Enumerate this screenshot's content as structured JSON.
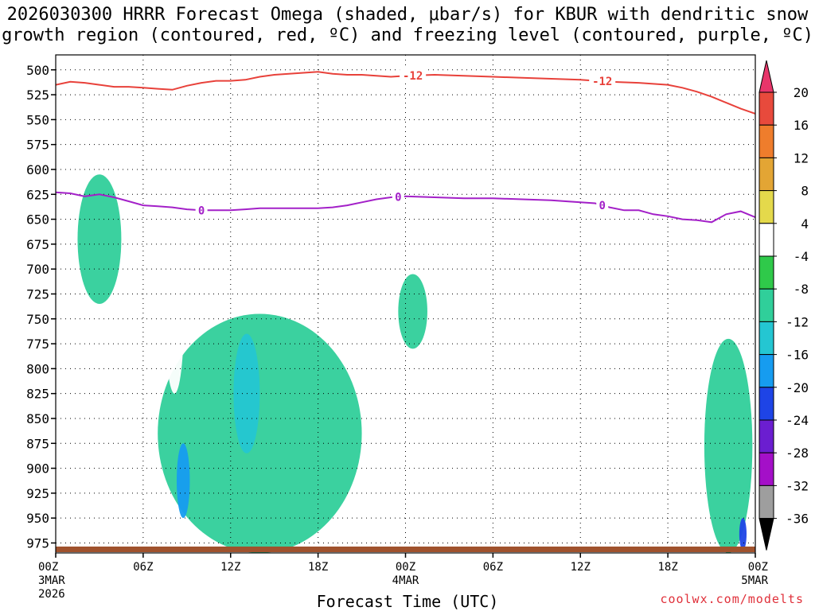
{
  "chart_data": {
    "type": "time-height cross section",
    "title_line1": "2026030300 HRRR Forecast Omega (shaded, μbar/s) for KBUR with dendritic snow",
    "title_line2": "growth region (contoured, red, ºC) and freezing level (contoured, purple, ºC)",
    "xlabel": "Forecast Time (UTC)",
    "credit": "coolwx.com/modelts",
    "x_range_hours": [
      0,
      48
    ],
    "y_range_hpa": [
      485,
      985
    ],
    "y_ticks": [
      "500",
      "525",
      "550",
      "575",
      "600",
      "625",
      "650",
      "675",
      "700",
      "725",
      "750",
      "775",
      "800",
      "825",
      "850",
      "875",
      "900",
      "925",
      "950",
      "975"
    ],
    "x_ticks": [
      {
        "hour": 0,
        "label": "00Z",
        "sub1": "3MAR",
        "sub2": "2026"
      },
      {
        "hour": 6,
        "label": "06Z"
      },
      {
        "hour": 12,
        "label": "12Z"
      },
      {
        "hour": 18,
        "label": "18Z"
      },
      {
        "hour": 24,
        "label": "00Z",
        "sub1": "4MAR"
      },
      {
        "hour": 30,
        "label": "06Z"
      },
      {
        "hour": 36,
        "label": "12Z"
      },
      {
        "hour": 42,
        "label": "18Z"
      },
      {
        "hour": 48,
        "label": "00Z",
        "sub1": "5MAR"
      }
    ],
    "colorbar": {
      "labels": [
        "20",
        "16",
        "12",
        "8",
        "4",
        "-4",
        "-8",
        "-12",
        "-16",
        "-20",
        "-24",
        "-28",
        "-32",
        "-36"
      ],
      "colors": [
        "#e8356a",
        "#e84a3c",
        "#ef7d2c",
        "#e3a534",
        "#e4d94b",
        "#ffffff",
        "#2fc94a",
        "#30cf9a",
        "#24c6d2",
        "#169cf0",
        "#1e44e6",
        "#6b1ed0",
        "#a410c8",
        "#9e9e9e",
        "#000000"
      ]
    },
    "series": [
      {
        "name": "-12 ºC isotherm (dendritic growth)",
        "color": "#e8413a",
        "label": "-12",
        "label_hours": [
          24.5,
          37.5
        ],
        "x": [
          0,
          1,
          2,
          3,
          4,
          5,
          6,
          7,
          8,
          9,
          10,
          11,
          12,
          13,
          14,
          15,
          16,
          17,
          18,
          19,
          20,
          21,
          22,
          23,
          24,
          26,
          28,
          30,
          32,
          34,
          36,
          38,
          40,
          42,
          43,
          44,
          45,
          46,
          47,
          48
        ],
        "y": [
          515,
          512,
          513,
          515,
          517,
          517,
          518,
          519,
          520,
          516,
          513,
          511,
          511,
          510,
          507,
          505,
          504,
          503,
          502,
          504,
          505,
          505,
          506,
          507,
          506,
          505,
          506,
          507,
          508,
          509,
          510,
          512,
          513,
          515,
          518,
          522,
          527,
          533,
          539,
          544
        ]
      },
      {
        "name": "0 ºC freezing level",
        "color": "#a320c8",
        "label": "0",
        "label_hours": [
          10,
          23.5,
          37.5
        ],
        "x": [
          0,
          1,
          2,
          3,
          4,
          5,
          6,
          7,
          8,
          9,
          10,
          11,
          12,
          13,
          14,
          15,
          16,
          17,
          18,
          19,
          20,
          21,
          22,
          23,
          24,
          26,
          28,
          30,
          32,
          34,
          36,
          37,
          38,
          39,
          40,
          41,
          42,
          43,
          44,
          45,
          46,
          47,
          48
        ],
        "y": [
          623,
          624,
          627,
          625,
          628,
          632,
          636,
          637,
          638,
          640,
          641,
          641,
          641,
          640,
          639,
          639,
          639,
          639,
          639,
          638,
          636,
          633,
          630,
          628,
          627,
          628,
          629,
          629,
          630,
          631,
          633,
          634,
          638,
          641,
          641,
          645,
          647,
          650,
          651,
          653,
          645,
          642,
          648
        ]
      }
    ],
    "omega_regions": [
      {
        "value": -8,
        "hours": [
          1.5,
          2.5,
          4.5,
          3.5
        ],
        "hpa": [
          605,
          640,
          705,
          735
        ]
      },
      {
        "value": -8,
        "hours": [
          7,
          10,
          16.5,
          21
        ],
        "hpa": [
          745,
          800,
          880,
          985
        ]
      },
      {
        "value": -12,
        "hours": [
          12.2,
          14
        ],
        "hpa": [
          765,
          885
        ]
      },
      {
        "value": -16,
        "hours": [
          8.3,
          9.2
        ],
        "hpa": [
          875,
          950
        ]
      },
      {
        "value": 4,
        "hours": [
          7.5,
          8.8
        ],
        "hpa": [
          670,
          825
        ]
      },
      {
        "value": 4,
        "hours": [
          3,
          4.3
        ],
        "hpa": [
          895,
          975
        ]
      },
      {
        "value": -8,
        "hours": [
          23.5,
          25.5
        ],
        "hpa": [
          705,
          780
        ]
      },
      {
        "value": -8,
        "hours": [
          44.5,
          47.8
        ],
        "hpa": [
          770,
          985
        ]
      },
      {
        "value": -20,
        "hours": [
          46.9,
          47.4
        ],
        "hpa": [
          950,
          982
        ]
      }
    ]
  }
}
